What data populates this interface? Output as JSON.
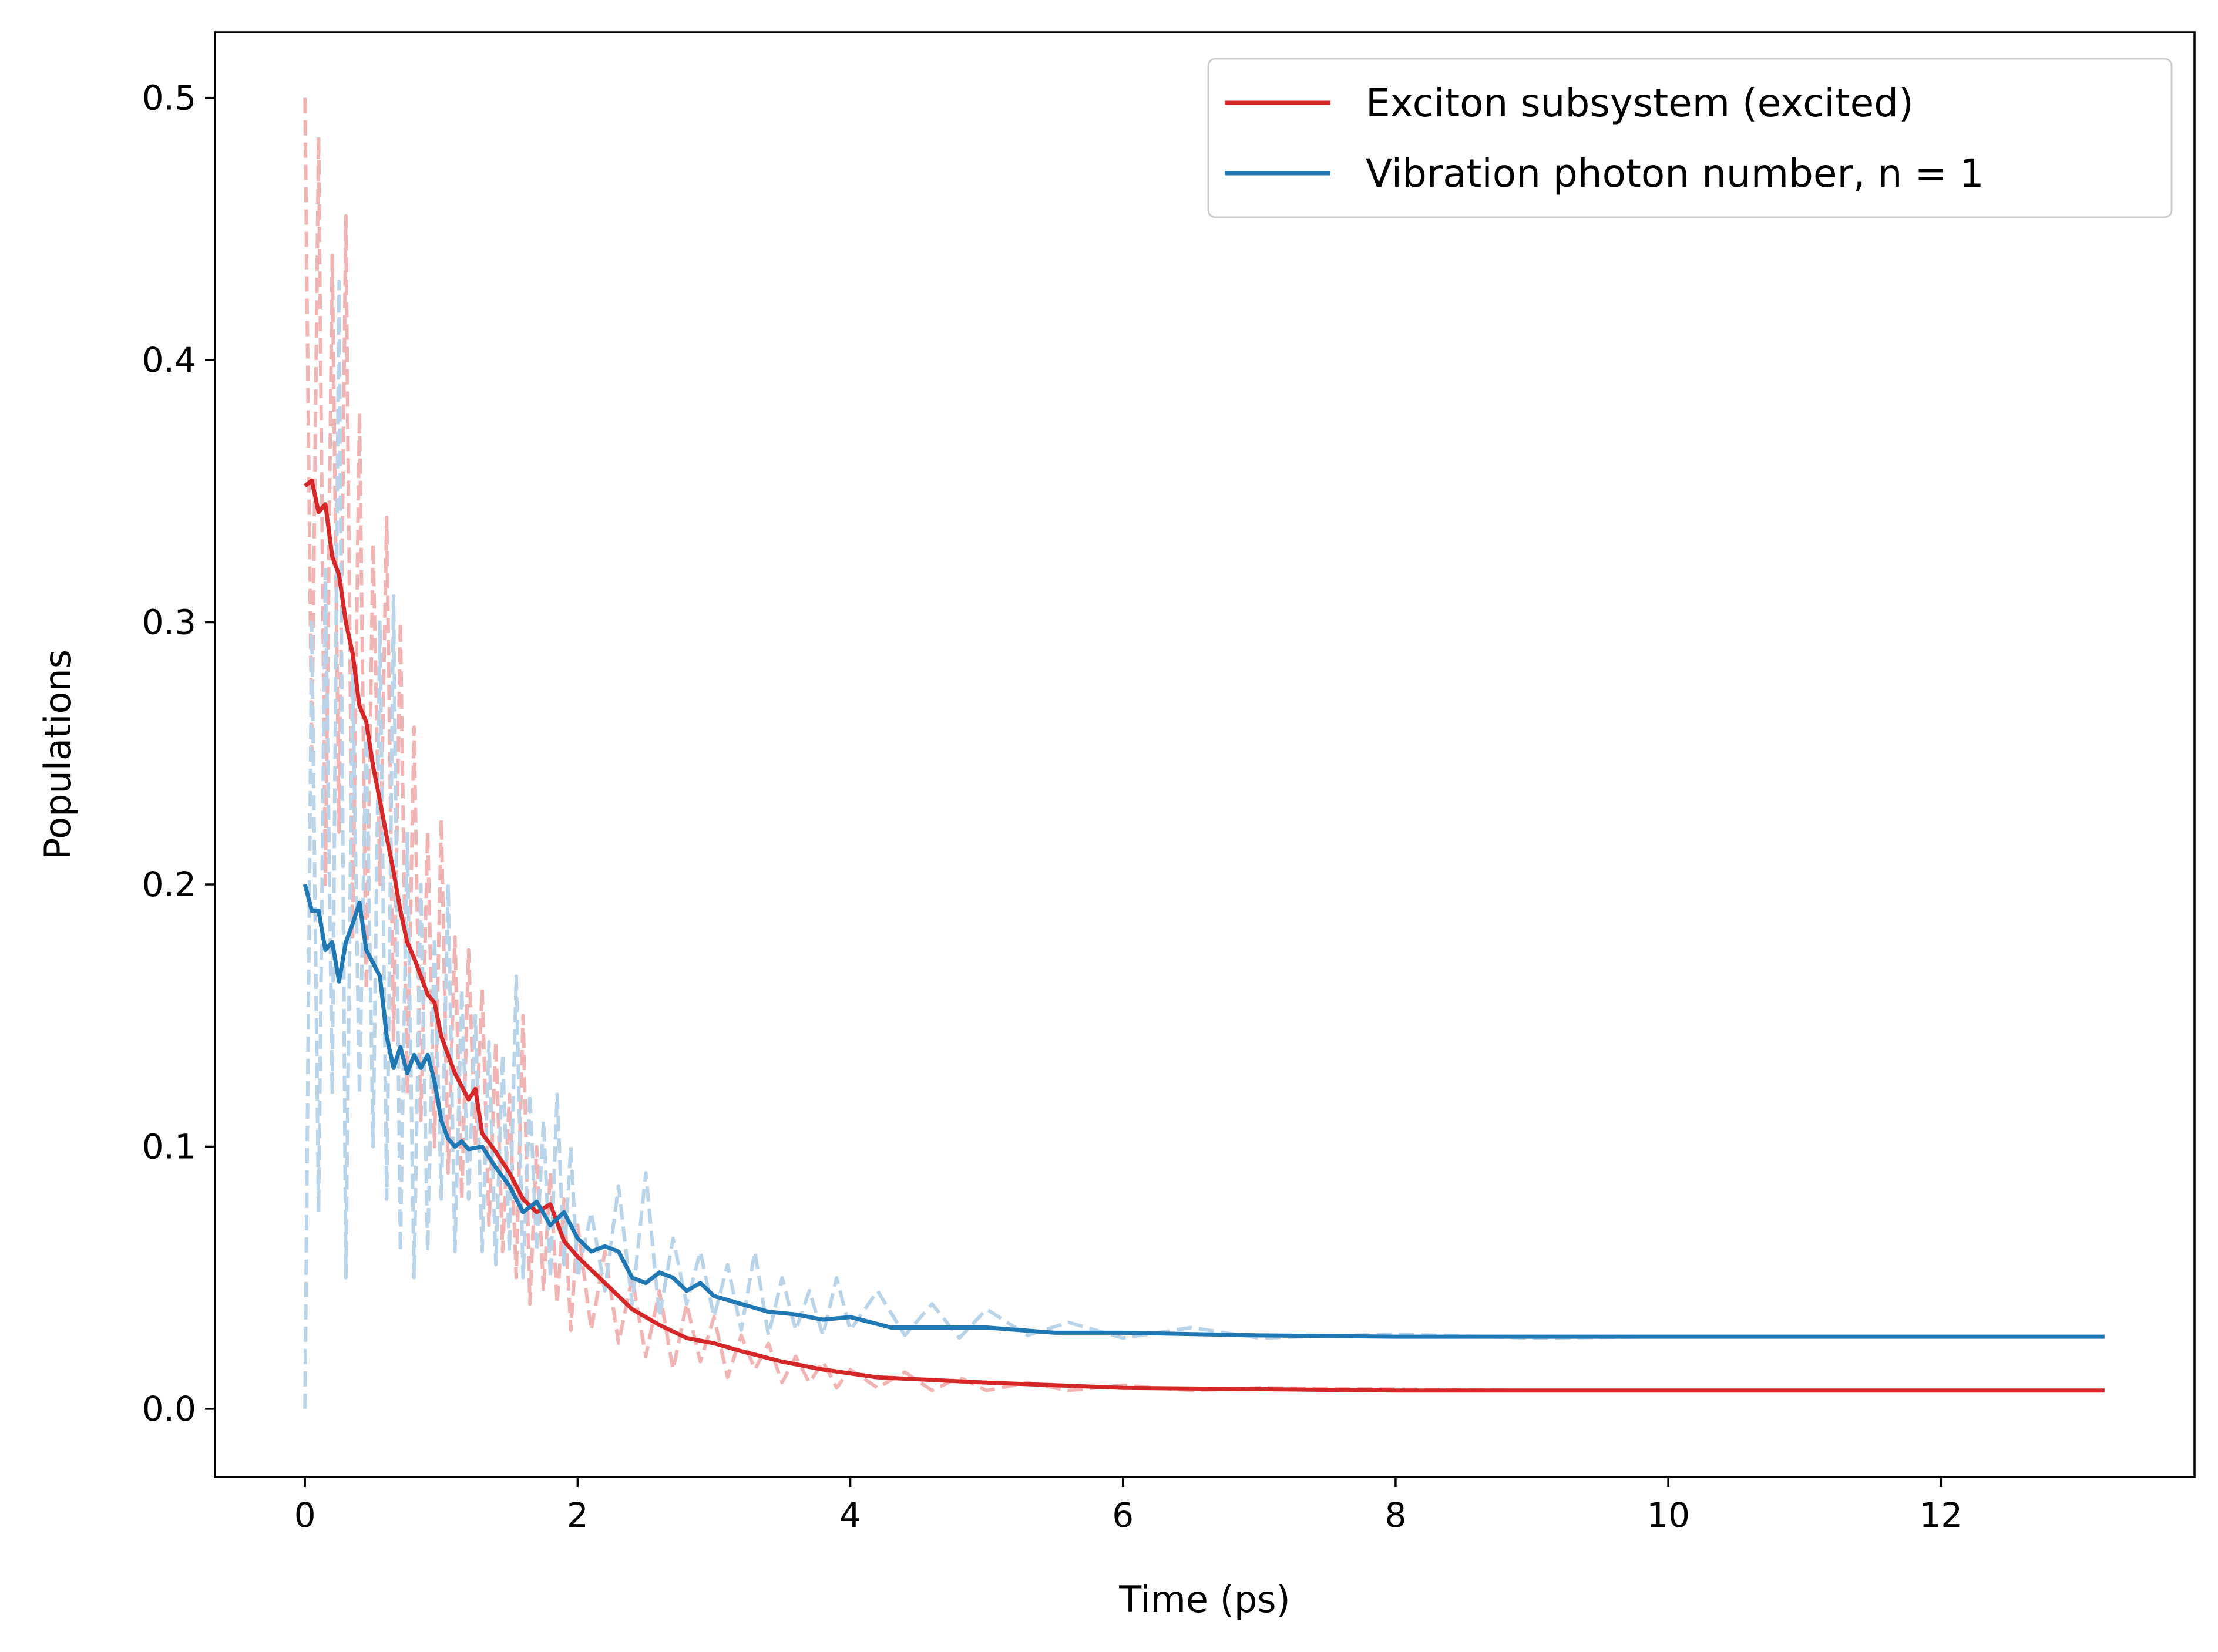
{
  "chart_data": {
    "type": "line",
    "title": "",
    "xlabel": "Time (ps)",
    "ylabel": "Populations",
    "xlim": [
      -0.66,
      13.86
    ],
    "ylim": [
      -0.026,
      0.525
    ],
    "xticks": [
      {
        "v": 0,
        "label": "0"
      },
      {
        "v": 2,
        "label": "2"
      },
      {
        "v": 4,
        "label": "4"
      },
      {
        "v": 6,
        "label": "6"
      },
      {
        "v": 8,
        "label": "8"
      },
      {
        "v": 10,
        "label": "10"
      },
      {
        "v": 12,
        "label": "12"
      }
    ],
    "yticks": [
      {
        "v": 0.0,
        "label": "0.0"
      },
      {
        "v": 0.1,
        "label": "0.1"
      },
      {
        "v": 0.2,
        "label": "0.2"
      },
      {
        "v": 0.3,
        "label": "0.3"
      },
      {
        "v": 0.4,
        "label": "0.4"
      },
      {
        "v": 0.5,
        "label": "0.5"
      }
    ],
    "grid": false,
    "legend_position": "top-right",
    "series": [
      {
        "name": "Exciton subsystem (excited)",
        "color": "#d62728",
        "style": "solid",
        "x": [
          0.0,
          0.05,
          0.1,
          0.15,
          0.2,
          0.25,
          0.3,
          0.35,
          0.4,
          0.45,
          0.5,
          0.55,
          0.6,
          0.65,
          0.7,
          0.75,
          0.8,
          0.85,
          0.9,
          0.95,
          1.0,
          1.1,
          1.2,
          1.25,
          1.3,
          1.4,
          1.5,
          1.6,
          1.7,
          1.8,
          1.9,
          2.0,
          2.2,
          2.4,
          2.6,
          2.8,
          3.0,
          3.2,
          3.5,
          3.8,
          4.2,
          4.6,
          5.0,
          5.5,
          6.0,
          7.0,
          8.0,
          9.0,
          10.0,
          11.0,
          12.0,
          13.2
        ],
        "y": [
          0.352,
          0.354,
          0.342,
          0.345,
          0.325,
          0.318,
          0.3,
          0.288,
          0.268,
          0.262,
          0.245,
          0.232,
          0.218,
          0.205,
          0.19,
          0.178,
          0.172,
          0.165,
          0.158,
          0.155,
          0.142,
          0.128,
          0.118,
          0.122,
          0.105,
          0.098,
          0.09,
          0.08,
          0.075,
          0.078,
          0.064,
          0.058,
          0.048,
          0.038,
          0.032,
          0.027,
          0.025,
          0.022,
          0.018,
          0.015,
          0.012,
          0.011,
          0.01,
          0.009,
          0.008,
          0.0075,
          0.007,
          0.007,
          0.007,
          0.007,
          0.007,
          0.007
        ]
      },
      {
        "name": "Vibration photon number, n = 1",
        "color": "#1f77b4",
        "style": "solid",
        "x": [
          0.0,
          0.05,
          0.1,
          0.15,
          0.2,
          0.25,
          0.3,
          0.35,
          0.4,
          0.45,
          0.5,
          0.55,
          0.6,
          0.65,
          0.7,
          0.75,
          0.8,
          0.85,
          0.9,
          0.95,
          1.0,
          1.05,
          1.1,
          1.15,
          1.2,
          1.3,
          1.4,
          1.5,
          1.6,
          1.7,
          1.8,
          1.9,
          2.0,
          2.1,
          2.2,
          2.3,
          2.4,
          2.5,
          2.6,
          2.7,
          2.8,
          2.9,
          3.0,
          3.2,
          3.4,
          3.6,
          3.8,
          4.0,
          4.3,
          4.6,
          5.0,
          5.5,
          6.0,
          7.0,
          8.0,
          9.0,
          10.0,
          11.0,
          12.0,
          13.2
        ],
        "y": [
          0.2,
          0.19,
          0.19,
          0.175,
          0.178,
          0.163,
          0.178,
          0.185,
          0.193,
          0.175,
          0.17,
          0.165,
          0.142,
          0.13,
          0.138,
          0.128,
          0.135,
          0.13,
          0.135,
          0.125,
          0.11,
          0.103,
          0.1,
          0.102,
          0.099,
          0.1,
          0.092,
          0.085,
          0.075,
          0.079,
          0.07,
          0.075,
          0.065,
          0.06,
          0.062,
          0.06,
          0.05,
          0.048,
          0.052,
          0.05,
          0.045,
          0.048,
          0.043,
          0.04,
          0.037,
          0.036,
          0.034,
          0.035,
          0.031,
          0.031,
          0.031,
          0.029,
          0.029,
          0.028,
          0.0275,
          0.0275,
          0.0275,
          0.0275,
          0.0275,
          0.0275
        ]
      },
      {
        "color": "#f1b4b4",
        "style": "dashed",
        "x": [
          0.0,
          0.05,
          0.1,
          0.15,
          0.2,
          0.25,
          0.3,
          0.35,
          0.4,
          0.45,
          0.5,
          0.55,
          0.6,
          0.65,
          0.7,
          0.75,
          0.8,
          0.85,
          0.9,
          0.95,
          1.0,
          1.05,
          1.1,
          1.15,
          1.2,
          1.25,
          1.3,
          1.35,
          1.4,
          1.45,
          1.5,
          1.55,
          1.6,
          1.65,
          1.7,
          1.75,
          1.8,
          1.85,
          1.9,
          1.95,
          2.0,
          2.1,
          2.2,
          2.3,
          2.4,
          2.5,
          2.6,
          2.7,
          2.8,
          2.9,
          3.0,
          3.1,
          3.2,
          3.3,
          3.4,
          3.5,
          3.6,
          3.7,
          3.8,
          3.9,
          4.0,
          4.2,
          4.4,
          4.6,
          4.8,
          5.0,
          5.3,
          5.6,
          6.0,
          6.5,
          7.0,
          8.0,
          9.0,
          10.0,
          11.0,
          12.0,
          13.2
        ],
        "y": [
          0.5,
          0.25,
          0.485,
          0.2,
          0.44,
          0.22,
          0.455,
          0.18,
          0.38,
          0.16,
          0.33,
          0.2,
          0.34,
          0.14,
          0.3,
          0.12,
          0.26,
          0.11,
          0.22,
          0.1,
          0.225,
          0.09,
          0.18,
          0.08,
          0.175,
          0.1,
          0.16,
          0.07,
          0.14,
          0.06,
          0.12,
          0.05,
          0.15,
          0.04,
          0.1,
          0.045,
          0.09,
          0.04,
          0.08,
          0.03,
          0.07,
          0.03,
          0.06,
          0.025,
          0.05,
          0.02,
          0.045,
          0.015,
          0.04,
          0.018,
          0.035,
          0.012,
          0.028,
          0.015,
          0.025,
          0.01,
          0.02,
          0.01,
          0.018,
          0.008,
          0.015,
          0.008,
          0.014,
          0.007,
          0.012,
          0.007,
          0.01,
          0.007,
          0.009,
          0.007,
          0.008,
          0.0075,
          0.007,
          0.007,
          0.007,
          0.007,
          0.007
        ]
      },
      {
        "color": "#b9d3e9",
        "style": "dashed",
        "x": [
          0.0,
          0.05,
          0.1,
          0.15,
          0.2,
          0.25,
          0.3,
          0.35,
          0.4,
          0.45,
          0.5,
          0.55,
          0.6,
          0.65,
          0.7,
          0.75,
          0.8,
          0.85,
          0.9,
          0.95,
          1.0,
          1.05,
          1.1,
          1.15,
          1.2,
          1.25,
          1.3,
          1.35,
          1.4,
          1.45,
          1.5,
          1.55,
          1.6,
          1.65,
          1.7,
          1.75,
          1.8,
          1.85,
          1.9,
          1.95,
          2.0,
          2.1,
          2.2,
          2.3,
          2.4,
          2.5,
          2.6,
          2.7,
          2.8,
          2.9,
          3.0,
          3.1,
          3.2,
          3.3,
          3.4,
          3.5,
          3.6,
          3.7,
          3.8,
          3.9,
          4.0,
          4.2,
          4.4,
          4.6,
          4.8,
          5.0,
          5.3,
          5.6,
          6.0,
          6.5,
          7.0,
          8.0,
          9.0,
          10.0,
          11.0,
          12.0,
          13.2
        ],
        "y": [
          0.0,
          0.3,
          0.075,
          0.32,
          0.12,
          0.43,
          0.05,
          0.28,
          0.12,
          0.26,
          0.1,
          0.3,
          0.08,
          0.31,
          0.06,
          0.22,
          0.05,
          0.2,
          0.06,
          0.18,
          0.08,
          0.2,
          0.06,
          0.16,
          0.08,
          0.15,
          0.06,
          0.14,
          0.055,
          0.135,
          0.06,
          0.165,
          0.05,
          0.12,
          0.06,
          0.11,
          0.05,
          0.12,
          0.055,
          0.1,
          0.05,
          0.075,
          0.045,
          0.085,
          0.04,
          0.09,
          0.035,
          0.065,
          0.04,
          0.06,
          0.035,
          0.055,
          0.03,
          0.06,
          0.028,
          0.05,
          0.03,
          0.045,
          0.028,
          0.05,
          0.03,
          0.045,
          0.028,
          0.04,
          0.027,
          0.038,
          0.028,
          0.033,
          0.027,
          0.031,
          0.027,
          0.0285,
          0.027,
          0.0275,
          0.0275,
          0.0275,
          0.0275
        ]
      }
    ]
  }
}
